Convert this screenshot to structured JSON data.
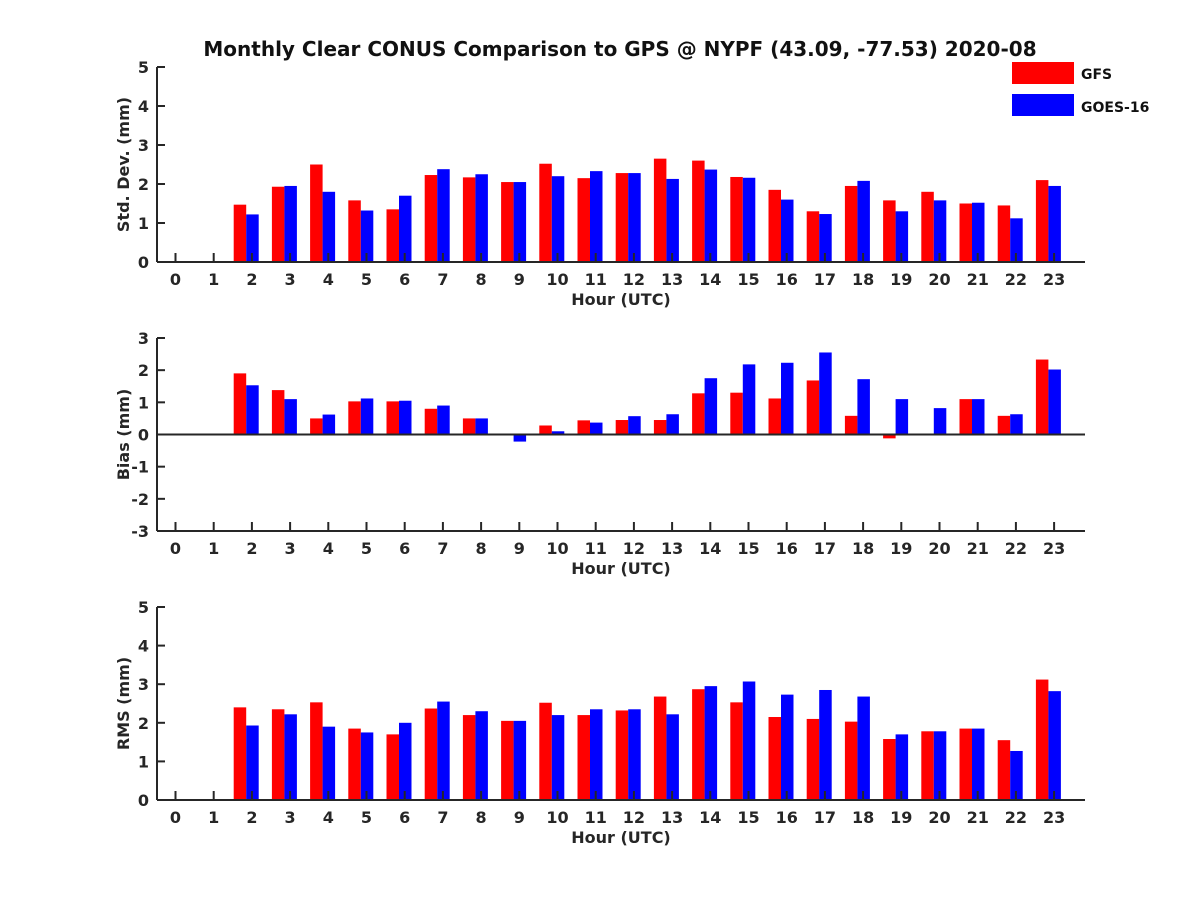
{
  "title": "Monthly Clear CONUS Comparison to GPS @ NYPF (43.09, -77.53) 2020-08",
  "colors": {
    "GFS": "#ff0000",
    "GOES-16": "#0000ff",
    "axis": "#262626"
  },
  "legend": {
    "position": "top-right",
    "entries": [
      "GFS",
      "GOES-16"
    ]
  },
  "chart_data": [
    {
      "type": "bar",
      "xlabel": "Hour (UTC)",
      "ylabel": "Std. Dev. (mm)",
      "ylim": [
        0,
        5
      ],
      "yticks": [
        0,
        1,
        2,
        3,
        4,
        5
      ],
      "grid": false,
      "categories": [
        "0",
        "1",
        "2",
        "3",
        "4",
        "5",
        "6",
        "7",
        "8",
        "9",
        "10",
        "11",
        "12",
        "13",
        "14",
        "15",
        "16",
        "17",
        "18",
        "19",
        "20",
        "21",
        "22",
        "23"
      ],
      "series": [
        {
          "name": "GFS",
          "values": [
            null,
            1.47,
            1.93,
            2.5,
            1.58,
            1.35,
            2.23,
            2.17,
            2.05,
            2.52,
            2.15,
            2.28,
            2.65,
            2.6,
            2.18,
            1.85,
            1.3,
            1.95,
            1.58,
            1.8,
            1.5,
            1.45,
            2.1,
            null
          ]
        },
        {
          "name": "GOES-16",
          "values": [
            null,
            1.22,
            1.95,
            1.8,
            1.32,
            1.7,
            2.38,
            2.25,
            2.05,
            2.2,
            2.33,
            2.28,
            2.13,
            2.37,
            2.16,
            1.6,
            1.23,
            2.08,
            1.3,
            1.58,
            1.52,
            1.12,
            1.95,
            null
          ]
        }
      ]
    },
    {
      "type": "bar",
      "xlabel": "Hour (UTC)",
      "ylabel": "Bias (mm)",
      "ylim": [
        -3,
        3
      ],
      "yticks": [
        -3,
        -2,
        -1,
        0,
        1,
        2,
        3
      ],
      "grid": false,
      "categories": [
        "0",
        "1",
        "2",
        "3",
        "4",
        "5",
        "6",
        "7",
        "8",
        "9",
        "10",
        "11",
        "12",
        "13",
        "14",
        "15",
        "16",
        "17",
        "18",
        "19",
        "20",
        "21",
        "22",
        "23"
      ],
      "series": [
        {
          "name": "GFS",
          "values": [
            null,
            1.9,
            1.38,
            0.5,
            1.03,
            1.03,
            0.8,
            0.5,
            0.0,
            0.28,
            0.44,
            0.45,
            0.45,
            1.28,
            1.3,
            1.12,
            1.68,
            0.58,
            -0.12,
            0.0,
            1.1,
            0.58,
            2.33,
            null
          ]
        },
        {
          "name": "GOES-16",
          "values": [
            null,
            1.53,
            1.1,
            0.62,
            1.12,
            1.05,
            0.9,
            0.5,
            -0.22,
            0.1,
            0.37,
            0.57,
            0.63,
            1.75,
            2.18,
            2.23,
            2.55,
            1.72,
            1.1,
            0.82,
            1.1,
            0.63,
            2.02,
            null
          ]
        }
      ]
    },
    {
      "type": "bar",
      "xlabel": "Hour (UTC)",
      "ylabel": "RMS (mm)",
      "ylim": [
        0,
        5
      ],
      "yticks": [
        0,
        1,
        2,
        3,
        4,
        5
      ],
      "grid": false,
      "categories": [
        "0",
        "1",
        "2",
        "3",
        "4",
        "5",
        "6",
        "7",
        "8",
        "9",
        "10",
        "11",
        "12",
        "13",
        "14",
        "15",
        "16",
        "17",
        "18",
        "19",
        "20",
        "21",
        "22",
        "23"
      ],
      "series": [
        {
          "name": "GFS",
          "values": [
            null,
            2.4,
            2.35,
            2.53,
            1.85,
            1.7,
            2.37,
            2.2,
            2.05,
            2.52,
            2.2,
            2.32,
            2.68,
            2.87,
            2.53,
            2.15,
            2.1,
            2.03,
            1.58,
            1.78,
            1.85,
            1.55,
            3.12,
            null
          ]
        },
        {
          "name": "GOES-16",
          "values": [
            null,
            1.93,
            2.22,
            1.9,
            1.75,
            2.0,
            2.55,
            2.3,
            2.05,
            2.2,
            2.35,
            2.35,
            2.22,
            2.95,
            3.07,
            2.73,
            2.85,
            2.68,
            1.7,
            1.78,
            1.85,
            1.27,
            2.82,
            null
          ]
        }
      ]
    }
  ]
}
